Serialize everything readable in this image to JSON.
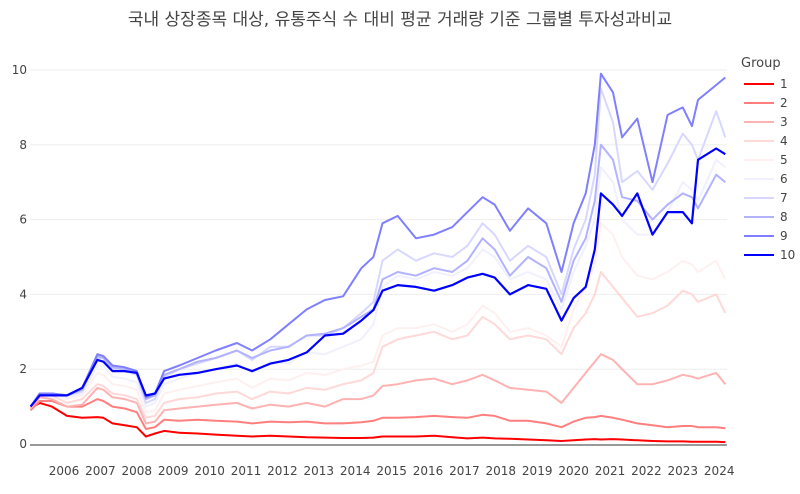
{
  "chart_data": {
    "type": "line",
    "title": "국내 상장종목 대상, 유통주식 수 대비 평균 거래량 기준 그룹별 투자성과비교",
    "xlabel": "",
    "ylabel": "",
    "ylim": [
      0,
      10.5
    ],
    "yticks": [
      0,
      2,
      4,
      6,
      8,
      10
    ],
    "xticks": [
      "2006",
      "2007",
      "2008",
      "2009",
      "2010",
      "2011",
      "2012",
      "2013",
      "2014",
      "2015",
      "2016",
      "2017",
      "2018",
      "2019",
      "2020",
      "2021",
      "2022",
      "2023",
      "2024"
    ],
    "grid": true,
    "legend": {
      "title": "Group",
      "placement": "right"
    },
    "x": [
      "2005-08",
      "2005-11",
      "2006-03",
      "2006-08",
      "2007-01",
      "2007-06",
      "2007-08",
      "2007-11",
      "2008-03",
      "2008-07",
      "2008-10",
      "2009-01",
      "2009-04",
      "2009-09",
      "2010-03",
      "2010-09",
      "2011-04",
      "2011-09",
      "2012-03",
      "2012-09",
      "2013-03",
      "2013-09",
      "2014-03",
      "2014-09",
      "2015-01",
      "2015-04",
      "2015-09",
      "2016-03",
      "2016-09",
      "2017-03",
      "2017-08",
      "2018-01",
      "2018-05",
      "2018-10",
      "2019-04",
      "2019-10",
      "2020-03",
      "2020-07",
      "2020-11",
      "2021-02",
      "2021-04",
      "2021-08",
      "2021-11",
      "2022-04",
      "2022-09",
      "2023-02",
      "2023-07",
      "2023-10",
      "2023-12",
      "2024-06",
      "2024-09"
    ],
    "series": [
      {
        "name": "1",
        "color": "#ff0000",
        "values": [
          0.95,
          1.1,
          1.0,
          0.75,
          0.7,
          0.72,
          0.7,
          0.55,
          0.5,
          0.45,
          0.2,
          0.28,
          0.35,
          0.3,
          0.28,
          0.25,
          0.22,
          0.2,
          0.22,
          0.2,
          0.18,
          0.17,
          0.16,
          0.16,
          0.17,
          0.2,
          0.2,
          0.2,
          0.22,
          0.18,
          0.15,
          0.17,
          0.15,
          0.14,
          0.12,
          0.1,
          0.08,
          0.1,
          0.12,
          0.13,
          0.12,
          0.13,
          0.12,
          0.1,
          0.08,
          0.07,
          0.07,
          0.06,
          0.06,
          0.06,
          0.05
        ]
      },
      {
        "name": "2",
        "color": "#ff7f7f",
        "values": [
          0.9,
          1.15,
          1.15,
          1.0,
          1.0,
          1.2,
          1.15,
          1.0,
          0.95,
          0.85,
          0.4,
          0.45,
          0.65,
          0.62,
          0.65,
          0.62,
          0.6,
          0.55,
          0.6,
          0.58,
          0.6,
          0.55,
          0.55,
          0.58,
          0.62,
          0.7,
          0.7,
          0.72,
          0.75,
          0.72,
          0.7,
          0.78,
          0.75,
          0.62,
          0.62,
          0.55,
          0.45,
          0.6,
          0.7,
          0.72,
          0.75,
          0.7,
          0.65,
          0.55,
          0.5,
          0.45,
          0.48,
          0.48,
          0.45,
          0.45,
          0.42
        ]
      },
      {
        "name": "3",
        "color": "#ffb2b2",
        "values": [
          0.95,
          1.25,
          1.2,
          1.0,
          1.05,
          1.5,
          1.45,
          1.25,
          1.2,
          1.1,
          0.55,
          0.6,
          0.9,
          0.95,
          1.0,
          1.05,
          1.1,
          0.95,
          1.05,
          1.0,
          1.1,
          1.0,
          1.2,
          1.2,
          1.3,
          1.55,
          1.6,
          1.7,
          1.75,
          1.6,
          1.7,
          1.85,
          1.7,
          1.5,
          1.45,
          1.4,
          1.1,
          1.5,
          1.9,
          2.2,
          2.4,
          2.25,
          2.0,
          1.6,
          1.6,
          1.7,
          1.85,
          1.8,
          1.75,
          1.9,
          1.6
        ]
      },
      {
        "name": "4",
        "color": "#ffd8d8",
        "values": [
          1.0,
          1.3,
          1.3,
          1.1,
          1.2,
          1.6,
          1.55,
          1.35,
          1.3,
          1.2,
          0.7,
          0.75,
          1.1,
          1.2,
          1.25,
          1.35,
          1.4,
          1.2,
          1.4,
          1.35,
          1.5,
          1.45,
          1.6,
          1.7,
          1.9,
          2.6,
          2.8,
          2.9,
          3.0,
          2.8,
          2.9,
          3.4,
          3.2,
          2.8,
          2.9,
          2.8,
          2.4,
          3.1,
          3.5,
          4.0,
          4.6,
          4.2,
          3.9,
          3.4,
          3.5,
          3.7,
          4.1,
          4.0,
          3.8,
          4.0,
          3.5
        ]
      },
      {
        "name": "5",
        "color": "#fff0f0",
        "values": [
          1.0,
          1.35,
          1.35,
          1.2,
          1.3,
          1.9,
          1.85,
          1.6,
          1.55,
          1.45,
          0.85,
          0.9,
          1.35,
          1.45,
          1.55,
          1.65,
          1.75,
          1.5,
          1.75,
          1.7,
          1.9,
          1.85,
          2.0,
          2.1,
          2.2,
          2.9,
          3.1,
          3.1,
          3.2,
          3.0,
          3.2,
          3.7,
          3.5,
          3.0,
          3.1,
          2.9,
          2.6,
          3.6,
          4.2,
          4.8,
          5.9,
          5.6,
          5.0,
          4.5,
          4.4,
          4.6,
          4.9,
          4.8,
          4.6,
          4.9,
          4.4
        ]
      },
      {
        "name": "6",
        "color": "#f0f0ff",
        "values": [
          1.0,
          1.35,
          1.35,
          1.25,
          1.35,
          2.1,
          2.1,
          1.8,
          1.75,
          1.65,
          1.0,
          1.1,
          1.6,
          1.75,
          1.9,
          2.0,
          2.15,
          1.9,
          2.2,
          2.15,
          2.45,
          2.4,
          2.6,
          2.8,
          3.2,
          4.2,
          4.5,
          4.4,
          4.6,
          4.5,
          4.7,
          5.2,
          5.0,
          4.4,
          4.6,
          4.4,
          3.6,
          4.6,
          5.3,
          6.0,
          7.4,
          7.0,
          6.0,
          5.6,
          5.6,
          6.2,
          7.0,
          6.8,
          6.5,
          7.6,
          7.4
        ]
      },
      {
        "name": "7",
        "color": "#d8d8ff",
        "values": [
          1.0,
          1.35,
          1.35,
          1.3,
          1.4,
          2.3,
          2.3,
          2.0,
          1.95,
          1.85,
          1.1,
          1.2,
          1.8,
          2.0,
          2.15,
          2.3,
          2.5,
          2.25,
          2.6,
          2.6,
          2.9,
          2.9,
          3.1,
          3.5,
          3.8,
          4.9,
          5.2,
          4.9,
          5.1,
          5.0,
          5.3,
          5.9,
          5.6,
          4.9,
          5.3,
          5.0,
          4.0,
          5.2,
          6.0,
          7.2,
          9.5,
          8.6,
          7.0,
          7.3,
          6.8,
          7.5,
          8.3,
          8.0,
          7.6,
          8.9,
          8.2
        ]
      },
      {
        "name": "8",
        "color": "#b2b2ff",
        "values": [
          1.0,
          1.35,
          1.35,
          1.3,
          1.45,
          2.35,
          2.3,
          2.05,
          2.0,
          1.9,
          1.2,
          1.3,
          1.85,
          2.0,
          2.2,
          2.3,
          2.5,
          2.3,
          2.5,
          2.6,
          2.9,
          2.95,
          3.1,
          3.4,
          3.6,
          4.4,
          4.6,
          4.5,
          4.7,
          4.6,
          4.9,
          5.5,
          5.2,
          4.5,
          5.0,
          4.7,
          3.8,
          4.9,
          5.5,
          6.5,
          8.0,
          7.6,
          6.6,
          6.5,
          6.0,
          6.4,
          6.7,
          6.6,
          6.3,
          7.2,
          7.0
        ]
      },
      {
        "name": "9",
        "color": "#7f7fff",
        "values": [
          1.0,
          1.35,
          1.35,
          1.3,
          1.5,
          2.4,
          2.35,
          2.1,
          2.05,
          1.95,
          1.25,
          1.35,
          1.95,
          2.1,
          2.3,
          2.5,
          2.7,
          2.5,
          2.8,
          3.2,
          3.6,
          3.85,
          3.95,
          4.7,
          5.0,
          5.9,
          6.1,
          5.5,
          5.6,
          5.8,
          6.2,
          6.6,
          6.4,
          5.7,
          6.3,
          5.9,
          4.6,
          5.9,
          6.7,
          8.0,
          9.9,
          9.4,
          8.2,
          8.7,
          7.0,
          8.8,
          9.0,
          8.5,
          9.2,
          9.6,
          9.8
        ]
      },
      {
        "name": "10",
        "color": "#0000ff",
        "values": [
          1.0,
          1.3,
          1.3,
          1.3,
          1.5,
          2.25,
          2.2,
          1.95,
          1.95,
          1.9,
          1.3,
          1.35,
          1.75,
          1.85,
          1.9,
          2.0,
          2.1,
          1.95,
          2.15,
          2.25,
          2.45,
          2.9,
          2.95,
          3.3,
          3.58,
          4.1,
          4.25,
          4.2,
          4.1,
          4.25,
          4.45,
          4.55,
          4.45,
          4.0,
          4.25,
          4.15,
          3.3,
          3.9,
          4.2,
          5.2,
          6.7,
          6.4,
          6.1,
          6.7,
          5.6,
          6.2,
          6.2,
          5.9,
          7.6,
          7.9,
          7.75
        ]
      }
    ]
  }
}
